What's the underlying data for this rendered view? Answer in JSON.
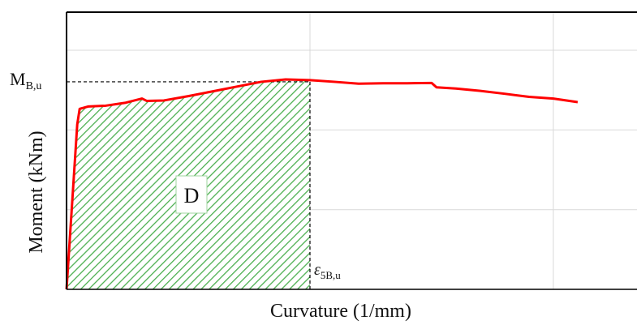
{
  "chart_data": {
    "type": "line",
    "title": "",
    "xlabel": "Curvature (1/mm)",
    "ylabel": "Moment (kNm)",
    "xlim": [
      0,
      1
    ],
    "ylim": [
      0,
      1
    ],
    "grid": true,
    "x_gridlines": [
      0.5,
      1.0
    ],
    "y_gridlines": [
      0.333,
      0.667,
      1.0
    ],
    "series": [
      {
        "color": "#ff0000",
        "x": [
          0.0,
          0.022,
          0.027,
          0.045,
          0.08,
          0.12,
          0.155,
          0.165,
          0.2,
          0.25,
          0.3,
          0.35,
          0.4,
          0.45,
          0.5,
          0.55,
          0.6,
          0.65,
          0.7,
          0.75,
          0.76,
          0.8,
          0.85,
          0.9,
          0.95,
          1.0,
          1.05
        ],
        "y": [
          0.0,
          0.69,
          0.755,
          0.765,
          0.768,
          0.78,
          0.798,
          0.788,
          0.79,
          0.808,
          0.828,
          0.848,
          0.868,
          0.878,
          0.875,
          0.868,
          0.86,
          0.862,
          0.862,
          0.863,
          0.845,
          0.84,
          0.83,
          0.818,
          0.805,
          0.798,
          0.783
        ]
      }
    ],
    "annotations": {
      "moment_label_main": "M",
      "moment_label_sub": "B,u",
      "moment_level": 0.868,
      "curvature_label_main": "ε",
      "curvature_label_sub": "5B,u",
      "curvature_level": 0.5,
      "area_label": "D",
      "area_fill_color": "#4caf50"
    }
  }
}
